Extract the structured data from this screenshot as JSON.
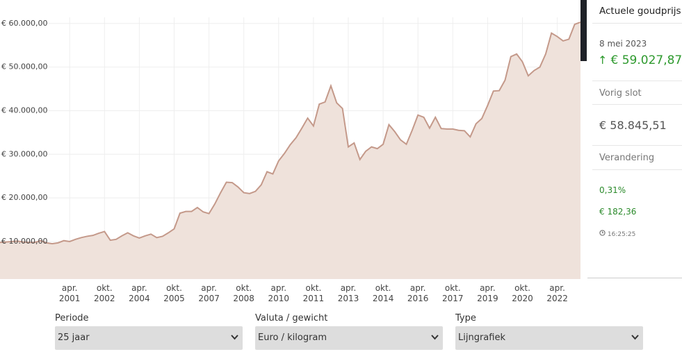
{
  "chart_data": {
    "type": "area",
    "categories": [
      null,
      null,
      null,
      null,
      null,
      null,
      null,
      null,
      null,
      null,
      null,
      null,
      "apr. 2001",
      null,
      null,
      null,
      null,
      null,
      "okt. 2002",
      null,
      null,
      null,
      null,
      null,
      "apr. 2004",
      null,
      null,
      null,
      null,
      null,
      "okt. 2005",
      null,
      null,
      null,
      null,
      null,
      "apr. 2007",
      null,
      null,
      null,
      null,
      null,
      "okt. 2008",
      null,
      null,
      null,
      null,
      null,
      "apr. 2010",
      null,
      null,
      null,
      null,
      null,
      "okt. 2011",
      null,
      null,
      null,
      null,
      null,
      "apr. 2013",
      null,
      null,
      null,
      null,
      null,
      "okt. 2014",
      null,
      null,
      null,
      null,
      null,
      "apr. 2016",
      null,
      null,
      null,
      null,
      null,
      "okt. 2017",
      null,
      null,
      null,
      null,
      null,
      "apr. 2019",
      null,
      null,
      null,
      null,
      null,
      "okt. 2020",
      null,
      null,
      null,
      null,
      null,
      "apr. 2022",
      null,
      null,
      null,
      null
    ],
    "values": [
      9800,
      9900,
      10000,
      10100,
      9900,
      9800,
      9800,
      10200,
      9700,
      9500,
      9700,
      10200,
      10000,
      10500,
      10900,
      11200,
      11400,
      11900,
      12300,
      10300,
      10500,
      11300,
      12000,
      11300,
      10800,
      11300,
      11700,
      10900,
      11200,
      12000,
      12900,
      16500,
      16900,
      16900,
      17800,
      16800,
      16400,
      18600,
      21200,
      23600,
      23500,
      22500,
      21200,
      21000,
      21500,
      23000,
      26000,
      25500,
      28500,
      30200,
      32200,
      33800,
      36000,
      38300,
      36500,
      41500,
      42000,
      45700,
      41800,
      40500,
      31700,
      32600,
      28800,
      30700,
      31700,
      31300,
      32300,
      36800,
      35200,
      33300,
      32300,
      35500,
      39000,
      38500,
      36000,
      38500,
      35900,
      35800,
      35800,
      35500,
      35400,
      34000,
      37000,
      38200,
      41200,
      44500,
      44600,
      47000,
      52400,
      53000,
      51200,
      48000,
      49200,
      50000,
      53000,
      57800,
      57000,
      56000,
      56400,
      59800,
      60300
    ],
    "color": "#c4998a",
    "fill": "#efe2db",
    "ylim": [
      1400,
      61400
    ],
    "yticks": [
      {
        "value": 10000,
        "label": "€ 10.000,00"
      },
      {
        "value": 20000,
        "label": "€ 20.000,00"
      },
      {
        "value": 30000,
        "label": "€ 30.000,00"
      },
      {
        "value": 40000,
        "label": "€ 40.000,00"
      },
      {
        "value": 50000,
        "label": "€ 50.000,00"
      },
      {
        "value": 60000,
        "label": "€ 60.000,00"
      }
    ],
    "grid": true
  },
  "sidebar": {
    "title": "Actuele goudprijs:",
    "date": "8 mei 2023",
    "current": "€ 59.027,87",
    "previous_label": "Vorig slot",
    "previous": "€ 58.845,51",
    "change_label": "Verandering",
    "change_percent": "0,31%",
    "change_amount": "€ 182,36",
    "time": "16:25:25"
  },
  "controls": [
    {
      "label": "Periode",
      "value": "25 jaar"
    },
    {
      "label": "Valuta / gewicht",
      "value": "Euro / kilogram"
    },
    {
      "label": "Type",
      "value": "Lijngrafiek"
    }
  ]
}
